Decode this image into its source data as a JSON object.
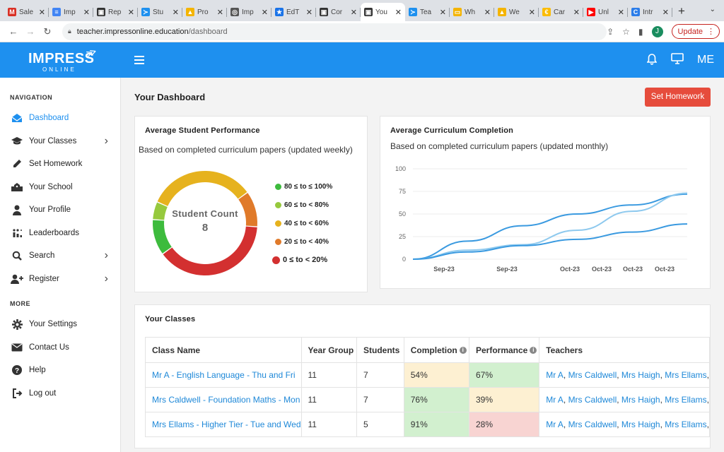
{
  "browser": {
    "tabs": [
      {
        "title": "Sale",
        "icon": "gmail-icon",
        "color": "#d93025",
        "glyph": "M"
      },
      {
        "title": "Imp",
        "icon": "docs-icon",
        "color": "#4285f4",
        "glyph": "≡"
      },
      {
        "title": "Rep",
        "icon": "classroom-icon",
        "color": "#333333",
        "glyph": "▣"
      },
      {
        "title": "Stu",
        "icon": "impress-icon",
        "color": "#1e90ef",
        "glyph": "≻"
      },
      {
        "title": "Pro",
        "icon": "drive-icon",
        "color": "#f4b400",
        "glyph": "▲"
      },
      {
        "title": "Imp",
        "icon": "globe-icon",
        "color": "#555555",
        "glyph": "◎"
      },
      {
        "title": "EdT",
        "icon": "star-icon",
        "color": "#1a73e8",
        "glyph": "★"
      },
      {
        "title": "Cor",
        "icon": "classroom-icon",
        "color": "#333333",
        "glyph": "▣"
      },
      {
        "title": "You",
        "icon": "classroom-icon",
        "color": "#333333",
        "glyph": "▣"
      },
      {
        "title": "Tea",
        "icon": "impress-icon",
        "color": "#1e90ef",
        "glyph": "≻"
      },
      {
        "title": "Wh",
        "icon": "slides-icon",
        "color": "#f4b400",
        "glyph": "▭"
      },
      {
        "title": "We",
        "icon": "drive-icon",
        "color": "#f4b400",
        "glyph": "▲"
      },
      {
        "title": "Car",
        "icon": "coin-icon",
        "color": "#fbbc04",
        "glyph": "€"
      },
      {
        "title": "Unl",
        "icon": "youtube-icon",
        "color": "#ff0000",
        "glyph": "▶"
      },
      {
        "title": "Intr",
        "icon": "edge-icon",
        "color": "#2b7de9",
        "glyph": "C"
      }
    ],
    "active_tab": 8,
    "url_domain": "teacher.impressonline.education",
    "url_path": "/dashboard",
    "profile_initial": "J",
    "update_label": "Update"
  },
  "header": {
    "logo_main": "IMPRESS",
    "logo_sub": "ONLINE",
    "me_label": "ME"
  },
  "sidebar": {
    "nav_title": "NAVIGATION",
    "items": [
      {
        "label": "Dashboard",
        "icon": "envelope-open-icon",
        "active": true
      },
      {
        "label": "Your Classes",
        "icon": "graduation-cap-icon",
        "chevron": true
      },
      {
        "label": "Set Homework",
        "icon": "pencil-icon"
      },
      {
        "label": "Your School",
        "icon": "school-icon"
      },
      {
        "label": "Your Profile",
        "icon": "user-icon"
      },
      {
        "label": "Leaderboards",
        "icon": "leaderboard-icon"
      },
      {
        "label": "Search",
        "icon": "search-icon",
        "chevron": true
      },
      {
        "label": "Register",
        "icon": "user-plus-icon",
        "chevron": true
      }
    ],
    "more_title": "MORE",
    "more_items": [
      {
        "label": "Your Settings",
        "icon": "gear-icon"
      },
      {
        "label": "Contact Us",
        "icon": "envelope-icon"
      },
      {
        "label": "Help",
        "icon": "question-icon"
      },
      {
        "label": "Log out",
        "icon": "logout-icon"
      }
    ]
  },
  "main": {
    "title": "Your Dashboard",
    "set_homework_label": "Set Homework",
    "perf_card": {
      "title": "Average Student Performance",
      "subtitle": "Based on completed curriculum papers (updated weekly)",
      "center_label": "Student Count",
      "center_value": "8"
    },
    "curr_card": {
      "title": "Average Curriculum Completion",
      "subtitle": "Based on completed curriculum papers (updated monthly)"
    },
    "classes_card": {
      "title": "Your Classes",
      "headers": [
        "Class Name",
        "Year Group",
        "Students",
        "Completion",
        "Performance",
        "Teachers"
      ],
      "rows": [
        {
          "name": "Mr A - English Language - Thu and Fri",
          "year": "11",
          "students": "7",
          "completion": "54%",
          "performance": "67%",
          "completion_color": "#fdf0d2",
          "performance_color": "#d2f0cf"
        },
        {
          "name": "Mrs Caldwell - Foundation Maths - Mon",
          "year": "11",
          "students": "7",
          "completion": "76%",
          "performance": "39%",
          "completion_color": "#d2f0cf",
          "performance_color": "#fdf0d2"
        },
        {
          "name": "Mrs Ellams - Higher Tier - Tue and Wed",
          "year": "11",
          "students": "5",
          "completion": "91%",
          "performance": "28%",
          "completion_color": "#d2f0cf",
          "performance_color": "#f8d4d2"
        }
      ],
      "teachers": [
        "Mr A",
        "Mrs Caldwell",
        "Mrs Haigh",
        "Mrs Ellams"
      ]
    }
  },
  "chart_data": [
    {
      "type": "pie",
      "categories": [
        "80 ≤ to ≤ 100%",
        "60 ≤ to < 80%",
        "40 ≤ to < 60%",
        "20 ≤ to < 40%",
        "0 ≤ to < 20%"
      ],
      "values": [
        1,
        0.5,
        3,
        1,
        3.5
      ],
      "colors": [
        "#3dbb3d",
        "#96c93d",
        "#e6b21e",
        "#e07a2a",
        "#d33030"
      ],
      "title": "Average Student Performance"
    },
    {
      "type": "line",
      "title": "Average Curriculum Completion",
      "x": [
        "Sep-23",
        "Sep-23",
        "Oct-23",
        "Oct-23",
        "Oct-23",
        "Oct-23"
      ],
      "ylim": [
        0,
        100
      ],
      "yticks": [
        0,
        25,
        50,
        75,
        100
      ],
      "series": [
        {
          "values": [
            0,
            20,
            37,
            50,
            60,
            72
          ],
          "color": "#3a9ae0"
        },
        {
          "values": [
            0,
            10,
            16,
            32,
            53,
            73
          ],
          "color": "#8ec9ee"
        },
        {
          "values": [
            0,
            8,
            15,
            22,
            30,
            39
          ],
          "color": "#3a9ae0"
        }
      ]
    }
  ]
}
